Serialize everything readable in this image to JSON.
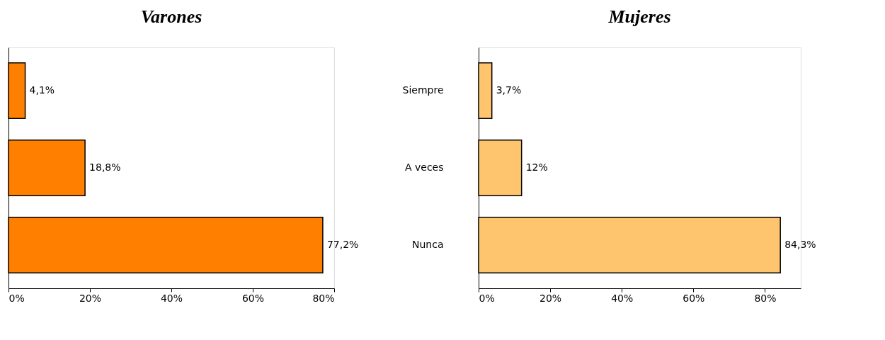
{
  "chart_data": [
    {
      "type": "bar",
      "orientation": "horizontal",
      "title": "Varones",
      "categories": [
        null,
        null,
        null
      ],
      "values": [
        4.1,
        18.8,
        77.2
      ],
      "color": "#ff8000",
      "value_labels": [
        "4,1%",
        "18,8%",
        "77,2%"
      ],
      "xlim": [
        0,
        80
      ],
      "xticks": [
        {
          "value": 0,
          "label": "0%"
        },
        {
          "value": 20,
          "label": "20%"
        },
        {
          "value": 40,
          "label": "40%"
        },
        {
          "value": 60,
          "label": "60%"
        },
        {
          "value": 80,
          "label": "80%"
        }
      ],
      "tick_labels": "x"
    },
    {
      "type": "bar",
      "orientation": "horizontal",
      "title": "Mujeres",
      "categories": [
        "Siempre",
        "A veces",
        "Nunca"
      ],
      "values": [
        3.7,
        12,
        84.3
      ],
      "color": "#ffc46e",
      "value_labels": [
        "3,7%",
        "12%",
        "84,3%"
      ],
      "xlim": [
        0,
        90
      ],
      "xticks": [
        {
          "value": 0,
          "label": "0%"
        },
        {
          "value": 20,
          "label": "20%"
        },
        {
          "value": 40,
          "label": "40%"
        },
        {
          "value": 60,
          "label": "60%"
        },
        {
          "value": 80,
          "label": "80%"
        }
      ]
    }
  ]
}
